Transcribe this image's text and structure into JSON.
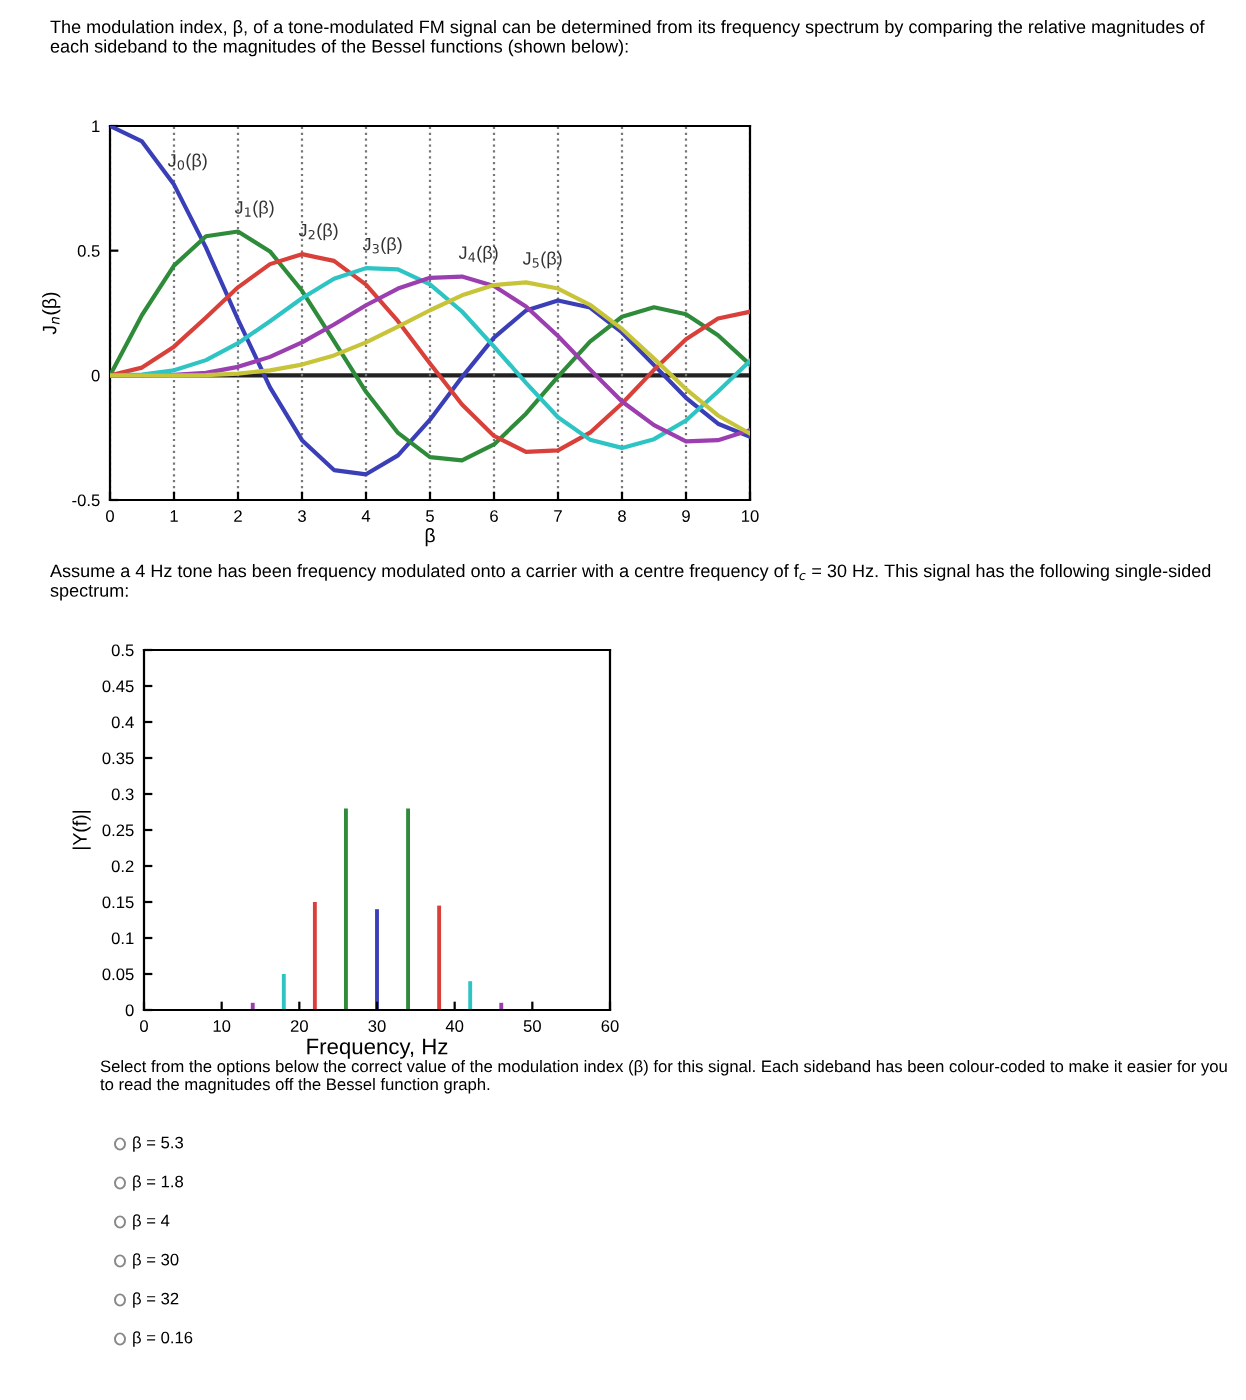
{
  "chart_data": [
    {
      "type": "line",
      "title": "The modulation index, β, of a tone-modulated FM signal can be determined from its frequency spectrum by comparing the relative magnitudes of each sideband to the magnitudes of the Bessel functions (shown below):",
      "xlabel": "β",
      "ylabel": "J$_{n}$(β)",
      "x": [
        0,
        0.5,
        1,
        1.5,
        2,
        2.5,
        3,
        3.5,
        4,
        4.5,
        5,
        5.5,
        6,
        6.5,
        7,
        7.5,
        8,
        8.5,
        9,
        9.5,
        10
      ],
      "series": [
        {
          "name": "J$_{0}$(β)",
          "color": "#3a3fb8",
          "values": [
            1,
            0.938,
            0.765,
            0.512,
            0.224,
            -0.048,
            -0.26,
            -0.38,
            -0.397,
            -0.321,
            -0.178,
            -0.007,
            0.151,
            0.26,
            0.3,
            0.272,
            0.172,
            0.041,
            -0.09,
            -0.194,
            -0.246
          ]
        },
        {
          "name": "J$_{1}$(β)",
          "color": "#2e8b3a",
          "values": [
            0,
            0.242,
            0.44,
            0.558,
            0.577,
            0.497,
            0.339,
            0.137,
            -0.066,
            -0.231,
            -0.328,
            -0.341,
            -0.277,
            -0.154,
            -0.005,
            0.135,
            0.235,
            0.273,
            0.245,
            0.161,
            0.043
          ]
        },
        {
          "name": "J$_{2}$(β)",
          "color": "#d9403a",
          "values": [
            0,
            0.031,
            0.115,
            0.232,
            0.353,
            0.446,
            0.486,
            0.459,
            0.364,
            0.217,
            0.047,
            -0.117,
            -0.243,
            -0.307,
            -0.301,
            -0.23,
            -0.113,
            0.022,
            0.145,
            0.228,
            0.255
          ]
        },
        {
          "name": "J$_{3}$(β)",
          "color": "#2ec4c4",
          "values": [
            0,
            0.003,
            0.02,
            0.061,
            0.129,
            0.217,
            0.309,
            0.387,
            0.43,
            0.425,
            0.365,
            0.256,
            0.115,
            -0.03,
            -0.168,
            -0.258,
            -0.291,
            -0.256,
            -0.181,
            -0.065,
            0.058
          ]
        },
        {
          "name": "J$_{4}$(β)",
          "color": "#9b3fb0",
          "values": [
            0,
            0,
            0.002,
            0.01,
            0.034,
            0.074,
            0.132,
            0.204,
            0.281,
            0.348,
            0.391,
            0.396,
            0.358,
            0.276,
            0.158,
            0.024,
            -0.105,
            -0.2,
            -0.265,
            -0.26,
            -0.22
          ]
        },
        {
          "name": "J$_{5}$(β)",
          "color": "#c8c43a",
          "values": [
            0,
            0,
            0,
            0.001,
            0.007,
            0.02,
            0.043,
            0.08,
            0.132,
            0.195,
            0.261,
            0.321,
            0.362,
            0.373,
            0.348,
            0.283,
            0.186,
            0.067,
            -0.055,
            -0.161,
            -0.234
          ]
        }
      ],
      "xlim": [
        0,
        10
      ],
      "ylim": [
        -0.5,
        1
      ],
      "xticks": [
        0,
        1,
        2,
        3,
        4,
        5,
        6,
        7,
        8,
        9,
        10
      ],
      "yticks": [
        -0.5,
        0,
        0.5,
        1
      ],
      "grid": "x",
      "ref_lines": [
        {
          "axis": "y",
          "value": 0,
          "color": "#222222"
        }
      ]
    },
    {
      "type": "bar",
      "title": "Assume a 4 Hz tone has been frequency modulated onto a carrier with a centre frequency of f$_{c}$ = 30 Hz. This signal has the following single-sided spectrum:",
      "xlabel": "Frequency, Hz",
      "ylabel": "|Y(f)|",
      "x": [
        14,
        18,
        22,
        26,
        30,
        34,
        38,
        42,
        46
      ],
      "values": [
        0.01,
        0.05,
        0.15,
        0.28,
        0.14,
        0.28,
        0.145,
        0.04,
        0.01
      ],
      "colors": [
        "#9b3fb0",
        "#2ec4c4",
        "#d9403a",
        "#2e8b3a",
        "#3a3fb8",
        "#2e8b3a",
        "#d9403a",
        "#2ec4c4",
        "#9b3fb0"
      ],
      "xlim": [
        0,
        60
      ],
      "ylim": [
        0,
        0.5
      ],
      "xticks": [
        0,
        10,
        20,
        30,
        40,
        50,
        60
      ],
      "yticks": [
        0,
        0.05,
        0.1,
        0.15,
        0.2,
        0.25,
        0.3,
        0.35,
        0.4,
        0.45,
        0.5
      ],
      "annotations": [
        "Select from the options below the correct value of the modulation index (β) for this signal. Each sideband has been colour-coded to make it easier for you to read the magnitudes off the Bessel function graph.",
        "β = 5.3",
        "β = 1.8",
        "β = 4",
        "β = 30",
        "β = 32",
        "β = 0.16"
      ]
    }
  ]
}
